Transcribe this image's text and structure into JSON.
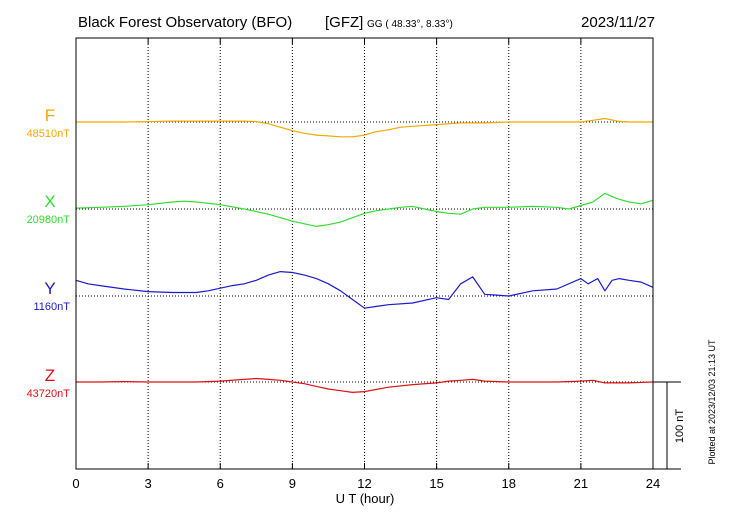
{
  "chart_data": {
    "type": "line",
    "title": "Black Forest Observatory (BFO)",
    "agency": "[GFZ]",
    "coords": "GG ( 48.33°,   8.33°)",
    "date": "2023/11/27",
    "xlabel": "U T (hour)",
    "xlim": [
      0,
      24
    ],
    "x_ticks": [
      0,
      3,
      6,
      9,
      12,
      15,
      18,
      21,
      24
    ],
    "x_tick_labels": [
      "0",
      "3",
      "6",
      "9",
      "12",
      "15",
      "18",
      "21",
      "24"
    ],
    "grid": true,
    "scale_bar": {
      "label": "100 nT",
      "value_nT": 100
    },
    "footnote": "Plotted at 2023/12/03 21:13 UT",
    "series": [
      {
        "name": "F",
        "baseline_label": "48510nT",
        "baseline_nT": 48510,
        "color": "#f5a800",
        "x": [
          0,
          1,
          2,
          3,
          4,
          5,
          6,
          7,
          7.5,
          8,
          8.5,
          9,
          9.5,
          10,
          10.5,
          11,
          11.5,
          12,
          12.5,
          13,
          13.5,
          14,
          15,
          16,
          17,
          18,
          19,
          20,
          21,
          21.5,
          22,
          22.5,
          23,
          24
        ],
        "y": [
          0,
          0,
          0,
          0.5,
          1,
          1,
          1,
          1,
          0.5,
          -2,
          -6,
          -10,
          -13,
          -15,
          -16,
          -17,
          -17,
          -15,
          -11,
          -9,
          -6,
          -5,
          -3,
          -1,
          -1,
          0,
          0,
          0,
          0,
          2,
          4,
          1,
          0,
          0
        ]
      },
      {
        "name": "X",
        "baseline_label": "20980nT",
        "baseline_nT": 20980,
        "color": "#33dd33",
        "x": [
          0,
          1,
          2,
          3,
          4,
          4.5,
          5,
          6,
          7,
          8,
          8.5,
          9,
          9.5,
          10,
          10.5,
          11,
          11.5,
          12,
          12.5,
          13,
          13.5,
          14,
          14.5,
          15,
          15.5,
          16,
          16.5,
          17,
          18,
          19,
          20,
          20.5,
          21,
          21.5,
          22,
          22.5,
          23,
          23.5,
          24
        ],
        "y": [
          1,
          2,
          3,
          5,
          8,
          9,
          8,
          5,
          0,
          -6,
          -10,
          -14,
          -17,
          -20,
          -18,
          -15,
          -10,
          -5,
          -2,
          0,
          2,
          3,
          0,
          -3,
          -5,
          -6,
          0,
          2,
          2,
          3,
          2,
          0,
          4,
          8,
          18,
          12,
          8,
          6,
          10
        ]
      },
      {
        "name": "Y",
        "baseline_label": "1160nT",
        "baseline_nT": 1160,
        "color": "#1a1acc",
        "x": [
          0,
          0.5,
          1,
          2,
          3,
          4,
          5,
          5.5,
          6,
          6.5,
          7,
          7.5,
          8,
          8.5,
          9,
          9.5,
          10,
          10.5,
          11,
          11.5,
          12,
          12.5,
          13,
          14,
          15,
          15.5,
          16,
          16.5,
          17,
          17.5,
          18,
          19,
          20,
          21,
          21.3,
          21.7,
          22,
          22.3,
          22.6,
          23,
          23.5,
          24
        ],
        "y": [
          18,
          14,
          12,
          8,
          5,
          4,
          4,
          6,
          9,
          12,
          14,
          18,
          24,
          28,
          27,
          24,
          20,
          14,
          6,
          -4,
          -14,
          -12,
          -10,
          -8,
          -2,
          -4,
          14,
          22,
          2,
          1,
          0,
          6,
          8,
          20,
          14,
          20,
          6,
          18,
          20,
          18,
          16,
          10
        ]
      },
      {
        "name": "Z",
        "baseline_label": "43720nT",
        "baseline_nT": 43720,
        "color": "#dd1111",
        "x": [
          0,
          1,
          2,
          3,
          4,
          5,
          6,
          7,
          7.5,
          8,
          8.5,
          9,
          9.5,
          10,
          10.5,
          11,
          11.5,
          12,
          13,
          14,
          15,
          15.5,
          16,
          16.5,
          17,
          18,
          19,
          20,
          21,
          21.5,
          22,
          23,
          24
        ],
        "y": [
          0,
          0,
          0.5,
          0,
          0,
          0,
          1,
          3,
          4,
          3,
          2,
          0,
          -2,
          -5,
          -8,
          -10,
          -12,
          -11,
          -6,
          -3,
          -1,
          1,
          2,
          3,
          1,
          0,
          0,
          0,
          1,
          2,
          -1,
          -1,
          0
        ]
      }
    ]
  }
}
